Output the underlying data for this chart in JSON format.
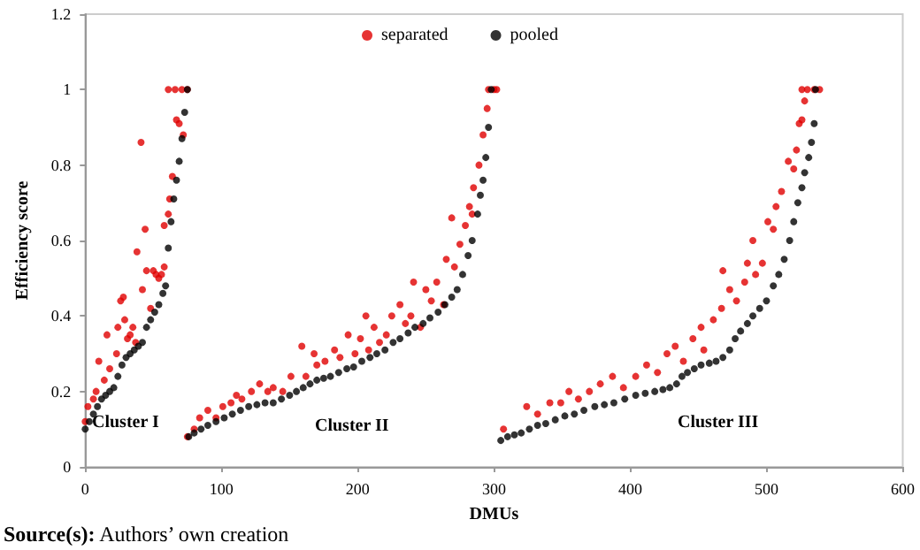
{
  "chart_data": {
    "type": "scatter",
    "xlabel": "DMUs",
    "ylabel": "Efficiency score",
    "xlim": [
      0,
      600
    ],
    "xticks": [
      0,
      100,
      200,
      300,
      400,
      500,
      600
    ],
    "ylim": [
      0,
      1.2
    ],
    "yticks": [
      0,
      0.2,
      0.4,
      0.6,
      0.8,
      1,
      1.2
    ],
    "grid": false,
    "legend": "top",
    "marker": "circle",
    "annotations": [
      "Cluster I",
      "Cluster II",
      "Cluster III",
      "Source(s): Authors’ own creation"
    ],
    "series": [
      {
        "name": "separated",
        "color": "#e00000",
        "x": [
          0,
          2,
          6,
          8,
          10,
          14,
          16,
          18,
          23,
          24,
          26,
          28,
          29,
          31,
          33,
          35,
          37,
          38,
          41,
          42,
          44,
          45,
          48,
          50,
          52,
          54,
          56,
          58,
          58,
          61,
          62,
          61,
          64,
          66,
          67,
          69,
          71,
          72,
          75,
          75,
          80,
          84,
          90,
          96,
          101,
          107,
          111,
          115,
          122,
          128,
          134,
          138,
          145,
          151,
          159,
          162,
          168,
          170,
          176,
          183,
          187,
          193,
          198,
          202,
          206,
          208,
          212,
          216,
          221,
          225,
          231,
          235,
          239,
          241,
          246,
          250,
          254,
          258,
          263,
          265,
          269,
          271,
          275,
          279,
          282,
          284,
          285,
          289,
          292,
          295,
          296,
          300,
          302,
          307,
          324,
          332,
          341,
          349,
          355,
          362,
          370,
          378,
          387,
          395,
          404,
          412,
          420,
          427,
          433,
          439,
          446,
          452,
          454,
          461,
          467,
          468,
          473,
          478,
          484,
          486,
          490,
          492,
          497,
          501,
          505,
          507,
          511,
          516,
          520,
          522,
          524,
          526,
          528,
          526,
          530,
          535,
          539
        ],
        "values": [
          0.12,
          0.16,
          0.18,
          0.2,
          0.28,
          0.23,
          0.35,
          0.26,
          0.3,
          0.37,
          0.44,
          0.45,
          0.39,
          0.34,
          0.35,
          0.37,
          0.33,
          0.57,
          0.86,
          0.47,
          0.63,
          0.52,
          0.42,
          0.52,
          0.51,
          0.5,
          0.51,
          0.53,
          0.64,
          0.67,
          0.71,
          1,
          0.77,
          1,
          0.92,
          0.91,
          1,
          0.88,
          1,
          0.08,
          0.1,
          0.13,
          0.15,
          0.13,
          0.16,
          0.17,
          0.19,
          0.18,
          0.2,
          0.22,
          0.2,
          0.21,
          0.2,
          0.24,
          0.32,
          0.24,
          0.3,
          0.27,
          0.28,
          0.31,
          0.29,
          0.35,
          0.3,
          0.34,
          0.4,
          0.31,
          0.37,
          0.33,
          0.35,
          0.4,
          0.43,
          0.38,
          0.4,
          0.49,
          0.37,
          0.47,
          0.44,
          0.49,
          0.43,
          0.55,
          0.66,
          0.53,
          0.59,
          0.64,
          0.69,
          0.67,
          0.74,
          0.8,
          0.88,
          0.95,
          1,
          1,
          1,
          0.1,
          0.16,
          0.14,
          0.17,
          0.17,
          0.2,
          0.18,
          0.2,
          0.22,
          0.24,
          0.21,
          0.24,
          0.27,
          0.25,
          0.3,
          0.32,
          0.28,
          0.34,
          0.37,
          0.31,
          0.39,
          0.42,
          0.52,
          0.47,
          0.44,
          0.49,
          0.54,
          0.6,
          0.51,
          0.54,
          0.65,
          0.63,
          0.69,
          0.73,
          0.81,
          0.79,
          0.84,
          0.91,
          0.92,
          0.97,
          1,
          1,
          1,
          1
        ]
      },
      {
        "name": "pooled",
        "color": "#000000",
        "x": [
          0,
          3,
          6,
          9,
          12,
          15,
          18,
          21,
          24,
          27,
          30,
          33,
          36,
          39,
          42,
          45,
          48,
          51,
          54,
          57,
          59,
          61,
          63,
          65,
          67,
          69,
          71,
          73,
          75,
          76,
          80,
          85,
          90,
          96,
          102,
          108,
          114,
          120,
          126,
          132,
          138,
          144,
          150,
          155,
          160,
          165,
          170,
          175,
          180,
          186,
          192,
          197,
          203,
          209,
          214,
          220,
          226,
          231,
          237,
          242,
          248,
          253,
          259,
          264,
          269,
          273,
          277,
          281,
          284,
          288,
          290,
          292,
          294,
          296,
          298,
          305,
          310,
          315,
          320,
          326,
          332,
          338,
          345,
          352,
          359,
          366,
          374,
          381,
          388,
          396,
          404,
          411,
          418,
          424,
          429,
          434,
          438,
          442,
          447,
          452,
          458,
          463,
          468,
          473,
          477,
          481,
          486,
          490,
          495,
          500,
          505,
          509,
          513,
          517,
          520,
          523,
          526,
          528,
          531,
          533,
          535,
          536
        ],
        "values": [
          0.1,
          0.12,
          0.14,
          0.16,
          0.18,
          0.19,
          0.2,
          0.21,
          0.24,
          0.27,
          0.29,
          0.3,
          0.31,
          0.32,
          0.33,
          0.37,
          0.39,
          0.41,
          0.43,
          0.46,
          0.48,
          0.58,
          0.65,
          0.71,
          0.76,
          0.81,
          0.87,
          0.94,
          1,
          0.08,
          0.09,
          0.1,
          0.11,
          0.12,
          0.13,
          0.14,
          0.15,
          0.16,
          0.165,
          0.17,
          0.17,
          0.18,
          0.19,
          0.2,
          0.21,
          0.22,
          0.23,
          0.235,
          0.24,
          0.25,
          0.26,
          0.265,
          0.28,
          0.29,
          0.3,
          0.31,
          0.33,
          0.34,
          0.355,
          0.37,
          0.38,
          0.395,
          0.41,
          0.43,
          0.45,
          0.47,
          0.51,
          0.56,
          0.6,
          0.67,
          0.72,
          0.76,
          0.82,
          0.9,
          1,
          0.07,
          0.08,
          0.085,
          0.09,
          0.1,
          0.11,
          0.115,
          0.125,
          0.135,
          0.14,
          0.15,
          0.16,
          0.165,
          0.17,
          0.18,
          0.19,
          0.195,
          0.2,
          0.205,
          0.21,
          0.22,
          0.24,
          0.25,
          0.26,
          0.27,
          0.275,
          0.28,
          0.29,
          0.31,
          0.34,
          0.36,
          0.38,
          0.4,
          0.42,
          0.44,
          0.48,
          0.51,
          0.55,
          0.6,
          0.65,
          0.7,
          0.74,
          0.78,
          0.82,
          0.86,
          0.91,
          1
        ]
      }
    ]
  }
}
